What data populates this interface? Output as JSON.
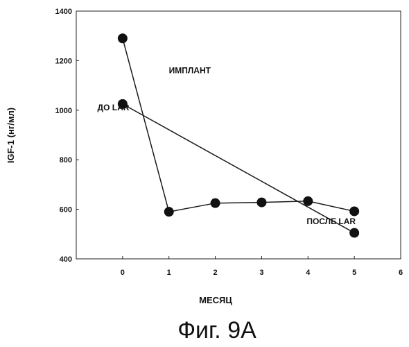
{
  "chart_data": {
    "type": "line",
    "xlabel": "МЕСЯЦ",
    "ylabel": "IGF-1 (нг/мл)",
    "xlim": [
      -1,
      6
    ],
    "ylim": [
      400,
      1400
    ],
    "xticks": [
      0,
      1,
      2,
      3,
      4,
      5,
      6
    ],
    "yticks": [
      400,
      600,
      800,
      1000,
      1200,
      1400
    ],
    "grid": false,
    "series": [
      {
        "x": [
          0,
          1,
          2,
          3,
          4,
          5
        ],
        "y": [
          1290,
          590,
          625,
          628,
          633,
          592
        ]
      },
      {
        "x": [
          0,
          5
        ],
        "y": [
          1025,
          505
        ]
      }
    ],
    "annotations": [
      {
        "text": "ИМПЛАНТ",
        "x": 1.45,
        "y": 1150
      },
      {
        "text": "ДО LAR",
        "x": -0.2,
        "y": 1000
      },
      {
        "text": "ПОСЛЕ LAR",
        "x": 4.5,
        "y": 540
      }
    ],
    "line_color": "#1a1a1a",
    "marker_color": "#111111"
  },
  "figure_caption": "Фиг. 9А"
}
